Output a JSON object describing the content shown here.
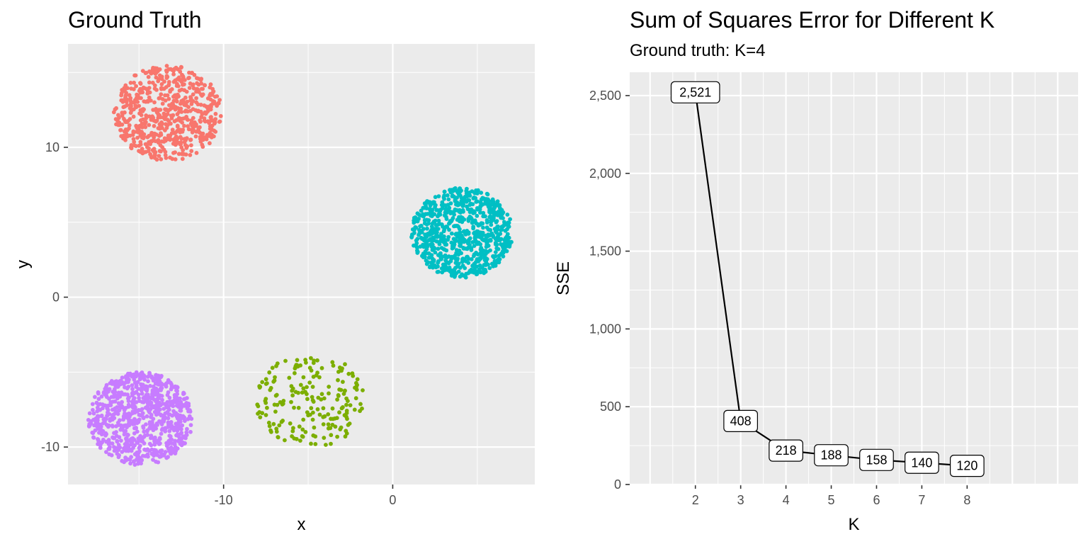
{
  "chart_data": [
    {
      "type": "scatter",
      "title": "Ground Truth",
      "xlabel": "x",
      "ylabel": "y",
      "xlim": [
        -19.2,
        8.4
      ],
      "ylim": [
        -12.5,
        16.9
      ],
      "x_ticks": [
        -10,
        0
      ],
      "y_ticks": [
        -10,
        0,
        10
      ],
      "grid": true,
      "legend": "none",
      "clusters": [
        {
          "color": "#F8766D",
          "center": [
            -13.3,
            12.3
          ],
          "radius": 3.2,
          "count": 650
        },
        {
          "color": "#00BFC4",
          "center": [
            4.1,
            4.3
          ],
          "radius": 3.0,
          "count": 800
        },
        {
          "color": "#C77CFF",
          "center": [
            -14.9,
            -8.1
          ],
          "radius": 3.1,
          "count": 800
        },
        {
          "color": "#7CAE00",
          "center": [
            -4.9,
            -6.9
          ],
          "radius": 3.2,
          "count": 200
        }
      ]
    },
    {
      "type": "line",
      "title": "Sum of Squares Error for Different K",
      "subtitle": "Ground truth: K=4",
      "xlabel": "K",
      "ylabel": "SSE",
      "x": [
        2,
        3,
        4,
        5,
        6,
        7,
        8
      ],
      "values": [
        2521,
        408,
        218,
        188,
        158,
        140,
        120
      ],
      "labels": [
        "2,521",
        "408",
        "218",
        "188",
        "158",
        "140",
        "120"
      ],
      "xlim": [
        0.55,
        10.45
      ],
      "ylim": [
        0,
        2650
      ],
      "x_ticks": [
        2,
        3,
        4,
        5,
        6,
        7,
        8
      ],
      "y_ticks": [
        0,
        500,
        1000,
        1500,
        2000,
        2500
      ],
      "y_tick_labels": [
        "0",
        "500",
        "1,000",
        "1,500",
        "2,000",
        "2,500"
      ],
      "grid": true,
      "line_color": "#000000"
    }
  ]
}
